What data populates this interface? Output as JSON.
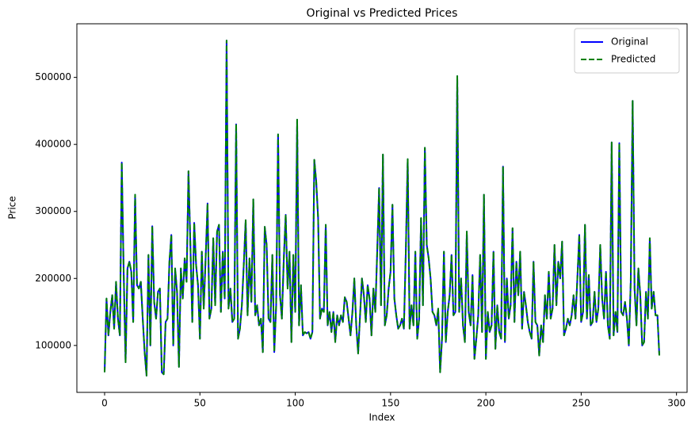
{
  "chart_data": {
    "type": "line",
    "title": "Original vs Predicted Prices",
    "xlabel": "Index",
    "ylabel": "Price",
    "x": [
      0,
      1,
      2,
      3,
      4,
      5,
      6,
      7,
      8,
      9,
      10,
      11,
      12,
      13,
      14,
      15,
      16,
      17,
      18,
      19,
      20,
      21,
      22,
      23,
      24,
      25,
      26,
      27,
      28,
      29,
      30,
      31,
      32,
      33,
      34,
      35,
      36,
      37,
      38,
      39,
      40,
      41,
      42,
      43,
      44,
      45,
      46,
      47,
      48,
      49,
      50,
      51,
      52,
      53,
      54,
      55,
      56,
      57,
      58,
      59,
      60,
      61,
      62,
      63,
      64,
      65,
      66,
      67,
      68,
      69,
      70,
      71,
      72,
      73,
      74,
      75,
      76,
      77,
      78,
      79,
      80,
      81,
      82,
      83,
      84,
      85,
      86,
      87,
      88,
      89,
      90,
      91,
      92,
      93,
      94,
      95,
      96,
      97,
      98,
      99,
      100,
      101,
      102,
      103,
      104,
      105,
      106,
      107,
      108,
      109,
      110,
      111,
      112,
      113,
      114,
      115,
      116,
      117,
      118,
      119,
      120,
      121,
      122,
      123,
      124,
      125,
      126,
      127,
      128,
      129,
      130,
      131,
      132,
      133,
      134,
      135,
      136,
      137,
      138,
      139,
      140,
      141,
      142,
      143,
      144,
      145,
      146,
      147,
      148,
      149,
      150,
      151,
      152,
      153,
      154,
      155,
      156,
      157,
      158,
      159,
      160,
      161,
      162,
      163,
      164,
      165,
      166,
      167,
      168,
      169,
      170,
      171,
      172,
      173,
      174,
      175,
      176,
      177,
      178,
      179,
      180,
      181,
      182,
      183,
      184,
      185,
      186,
      187,
      188,
      189,
      190,
      191,
      192,
      193,
      194,
      195,
      196,
      197,
      198,
      199,
      200,
      201,
      202,
      203,
      204,
      205,
      206,
      207,
      208,
      209,
      210,
      211,
      212,
      213,
      214,
      215,
      216,
      217,
      218,
      219,
      220,
      221,
      222,
      223,
      224,
      225,
      226,
      227,
      228,
      229,
      230,
      231,
      232,
      233,
      234,
      235,
      236,
      237,
      238,
      239,
      240,
      241,
      242,
      243,
      244,
      245,
      246,
      247,
      248,
      249,
      250,
      251,
      252,
      253,
      254,
      255,
      256,
      257,
      258,
      259,
      260,
      261,
      262,
      263,
      264,
      265,
      266,
      267,
      268,
      269,
      270,
      271,
      272,
      273,
      274,
      275,
      276,
      277,
      278,
      279,
      280,
      281,
      282,
      283,
      284,
      285,
      286,
      287,
      288,
      289,
      290,
      291
    ],
    "series": [
      {
        "name": "Original",
        "color": "#0000ff",
        "linestyle": "solid",
        "values": [
          60000,
          170000,
          115000,
          150000,
          175000,
          125000,
          195000,
          140000,
          115000,
          373000,
          210000,
          75000,
          215000,
          225000,
          210000,
          135000,
          325000,
          190000,
          185000,
          195000,
          140000,
          90000,
          55000,
          235000,
          100000,
          278000,
          165000,
          140000,
          180000,
          185000,
          60000,
          57000,
          135000,
          140000,
          225000,
          265000,
          100000,
          215000,
          180000,
          68000,
          215000,
          170000,
          230000,
          195000,
          360000,
          250000,
          135000,
          283000,
          220000,
          190000,
          110000,
          240000,
          155000,
          230000,
          312000,
          140000,
          155000,
          260000,
          160000,
          270000,
          280000,
          150000,
          240000,
          170000,
          555000,
          155000,
          185000,
          135000,
          140000,
          430000,
          110000,
          125000,
          160000,
          220000,
          287000,
          145000,
          230000,
          165000,
          318000,
          145000,
          160000,
          130000,
          140000,
          90000,
          277000,
          250000,
          140000,
          135000,
          235000,
          90000,
          160000,
          415000,
          175000,
          140000,
          230000,
          295000,
          185000,
          240000,
          105000,
          235000,
          150000,
          437000,
          130000,
          190000,
          115000,
          120000,
          118000,
          120000,
          110000,
          120000,
          377000,
          345000,
          290000,
          140000,
          155000,
          150000,
          280000,
          130000,
          150000,
          120000,
          150000,
          105000,
          145000,
          130000,
          145000,
          135000,
          172000,
          165000,
          140000,
          115000,
          150000,
          200000,
          130000,
          88000,
          145000,
          200000,
          175000,
          135000,
          190000,
          170000,
          115000,
          185000,
          150000,
          240000,
          335000,
          160000,
          385000,
          130000,
          145000,
          185000,
          210000,
          310000,
          170000,
          145000,
          125000,
          130000,
          140000,
          125000,
          240000,
          378000,
          125000,
          160000,
          130000,
          240000,
          110000,
          140000,
          290000,
          160000,
          395000,
          250000,
          230000,
          200000,
          150000,
          145000,
          130000,
          155000,
          60000,
          110000,
          240000,
          105000,
          150000,
          175000,
          235000,
          145000,
          150000,
          502000,
          150000,
          200000,
          130000,
          105000,
          270000,
          150000,
          130000,
          205000,
          80000,
          110000,
          145000,
          235000,
          120000,
          325000,
          80000,
          150000,
          120000,
          130000,
          240000,
          95000,
          160000,
          120000,
          110000,
          367000,
          105000,
          200000,
          140000,
          160000,
          275000,
          135000,
          225000,
          175000,
          240000,
          125000,
          180000,
          160000,
          135000,
          120000,
          110000,
          225000,
          135000,
          130000,
          85000,
          130000,
          105000,
          175000,
          140000,
          210000,
          140000,
          155000,
          250000,
          160000,
          225000,
          200000,
          255000,
          115000,
          125000,
          140000,
          130000,
          145000,
          175000,
          140000,
          200000,
          265000,
          135000,
          150000,
          280000,
          140000,
          205000,
          130000,
          135000,
          180000,
          135000,
          155000,
          250000,
          170000,
          140000,
          210000,
          130000,
          110000,
          403000,
          115000,
          150000,
          120000,
          402000,
          150000,
          145000,
          165000,
          140000,
          100000,
          195000,
          465000,
          185000,
          130000,
          215000,
          175000,
          100000,
          105000,
          180000,
          140000,
          260000,
          155000,
          180000,
          145000,
          145000,
          85000
        ]
      },
      {
        "name": "Predicted",
        "color": "#008000",
        "linestyle": "dashed",
        "values": [
          60000,
          170000,
          115000,
          150000,
          175000,
          125000,
          195000,
          140000,
          115000,
          373000,
          210000,
          75000,
          215000,
          225000,
          210000,
          135000,
          325000,
          190000,
          185000,
          195000,
          140000,
          90000,
          55000,
          235000,
          100000,
          278000,
          165000,
          140000,
          180000,
          185000,
          60000,
          57000,
          135000,
          140000,
          225000,
          265000,
          100000,
          215000,
          180000,
          68000,
          215000,
          170000,
          230000,
          195000,
          360000,
          250000,
          135000,
          283000,
          220000,
          190000,
          110000,
          240000,
          155000,
          230000,
          312000,
          140000,
          155000,
          260000,
          160000,
          270000,
          280000,
          150000,
          240000,
          170000,
          555000,
          155000,
          185000,
          135000,
          140000,
          430000,
          110000,
          125000,
          160000,
          220000,
          287000,
          145000,
          230000,
          165000,
          318000,
          145000,
          160000,
          130000,
          140000,
          90000,
          277000,
          250000,
          140000,
          135000,
          235000,
          90000,
          160000,
          415000,
          175000,
          140000,
          230000,
          295000,
          185000,
          240000,
          105000,
          235000,
          150000,
          437000,
          130000,
          190000,
          115000,
          120000,
          118000,
          120000,
          110000,
          120000,
          377000,
          345000,
          290000,
          140000,
          155000,
          150000,
          280000,
          130000,
          150000,
          120000,
          150000,
          105000,
          145000,
          130000,
          145000,
          135000,
          172000,
          165000,
          140000,
          115000,
          150000,
          200000,
          130000,
          88000,
          145000,
          200000,
          175000,
          135000,
          190000,
          170000,
          115000,
          185000,
          150000,
          240000,
          335000,
          160000,
          385000,
          130000,
          145000,
          185000,
          210000,
          310000,
          170000,
          145000,
          125000,
          130000,
          140000,
          125000,
          240000,
          378000,
          125000,
          160000,
          130000,
          240000,
          110000,
          140000,
          290000,
          160000,
          395000,
          250000,
          230000,
          200000,
          150000,
          145000,
          130000,
          155000,
          60000,
          110000,
          240000,
          105000,
          150000,
          175000,
          235000,
          145000,
          150000,
          502000,
          150000,
          200000,
          130000,
          105000,
          270000,
          150000,
          130000,
          205000,
          80000,
          110000,
          145000,
          235000,
          120000,
          325000,
          80000,
          150000,
          120000,
          130000,
          240000,
          95000,
          160000,
          120000,
          110000,
          367000,
          105000,
          200000,
          140000,
          160000,
          275000,
          135000,
          225000,
          175000,
          240000,
          125000,
          180000,
          160000,
          135000,
          120000,
          110000,
          225000,
          135000,
          130000,
          85000,
          130000,
          105000,
          175000,
          140000,
          210000,
          140000,
          155000,
          250000,
          160000,
          225000,
          200000,
          255000,
          115000,
          125000,
          140000,
          130000,
          145000,
          175000,
          140000,
          200000,
          265000,
          135000,
          150000,
          280000,
          140000,
          205000,
          130000,
          135000,
          180000,
          135000,
          155000,
          250000,
          170000,
          140000,
          210000,
          130000,
          110000,
          403000,
          115000,
          150000,
          120000,
          402000,
          150000,
          145000,
          165000,
          140000,
          100000,
          195000,
          465000,
          185000,
          130000,
          215000,
          175000,
          100000,
          105000,
          180000,
          140000,
          260000,
          155000,
          180000,
          145000,
          145000,
          85000
        ]
      }
    ],
    "xlim": [
      -14.55,
      305.55
    ],
    "ylim": [
      30000,
      580000
    ],
    "xticks": [
      0,
      50,
      100,
      150,
      200,
      250,
      300
    ],
    "yticks": [
      100000,
      200000,
      300000,
      400000,
      500000
    ],
    "grid": false,
    "legend": "upper right"
  }
}
